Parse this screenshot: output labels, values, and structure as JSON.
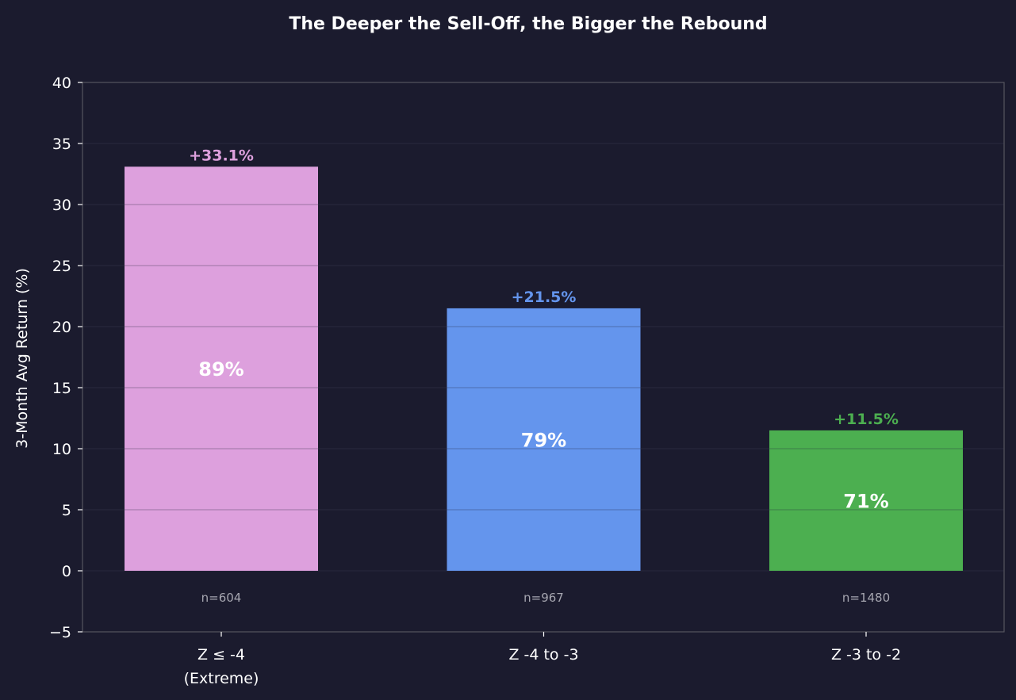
{
  "chart_data": {
    "type": "bar",
    "title": "The Deeper the Sell-Off, the Bigger the Rebound",
    "xlabel": "",
    "ylabel": "3-Month Avg Return (%)",
    "ylim": [
      -5,
      40
    ],
    "yticks": [
      -5,
      0,
      5,
      10,
      15,
      20,
      25,
      30,
      35,
      40
    ],
    "ytick_labels": [
      "−5",
      "0",
      "5",
      "10",
      "15",
      "20",
      "25",
      "30",
      "35",
      "40"
    ],
    "grid": true,
    "categories": [
      [
        "Z ≤ -4",
        "(Extreme)"
      ],
      [
        "Z -4 to -3"
      ],
      [
        "Z -3 to -2"
      ]
    ],
    "values": [
      33.1,
      21.5,
      11.5
    ],
    "value_labels": [
      "+33.1%",
      "+21.5%",
      "+11.5%"
    ],
    "win_rate_labels": [
      "89%",
      "79%",
      "71%"
    ],
    "sample_labels": [
      "n=604",
      "n=967",
      "n=1480"
    ],
    "colors": [
      "#dda0dd",
      "#6495ed",
      "#4caf50"
    ]
  },
  "style": {
    "background": "#1b1b2e",
    "axes_edge": "#55555f",
    "grid_color": "#2a2a3e",
    "text_color": "#ffffff",
    "muted_text": "#a6a6b0"
  }
}
